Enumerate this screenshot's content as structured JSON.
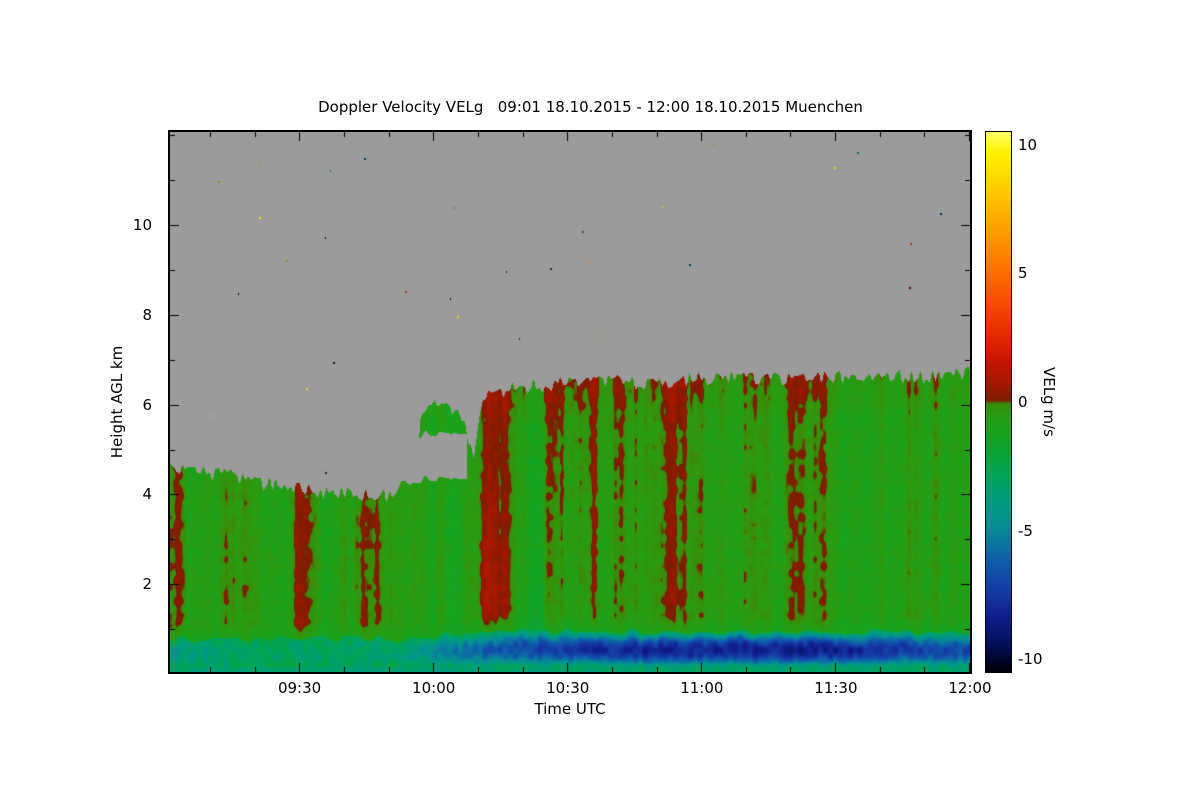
{
  "title": "Doppler Velocity VELg   09:01 18.10.2015 - 12:00 18.10.2015 Muenchen",
  "chart_data": {
    "type": "heatmap",
    "title": "Doppler Velocity VELg   09:01 18.10.2015 - 12:00 18.10.2015 Muenchen",
    "quantity": "Doppler Velocity VELg",
    "time_span": "09:01 18.10.2015 - 12:00 18.10.2015",
    "location": "Muenchen",
    "xlabel": "Time UTC",
    "ylabel": "Height AGL km",
    "colorbar_label": "VELg m/s",
    "x_start": "09:01",
    "x_end": "12:00",
    "x_total_minutes": 179,
    "x_ticks": [
      {
        "label": "09:30",
        "minute": 29
      },
      {
        "label": "10:00",
        "minute": 59
      },
      {
        "label": "10:30",
        "minute": 89
      },
      {
        "label": "11:00",
        "minute": 119
      },
      {
        "label": "11:30",
        "minute": 149
      },
      {
        "label": "12:00",
        "minute": 179
      }
    ],
    "x_minor_every_min": 10,
    "y_ticks": [
      2,
      4,
      6,
      8,
      10
    ],
    "y_minor_every_km": 1,
    "y_range_km": [
      0.07,
      12.07
    ],
    "colorbar_ticks": [
      10,
      5,
      0,
      -5,
      -10
    ],
    "colorbar_range": [
      -10.5,
      10.5
    ],
    "no_data_color": "#9b9b9b",
    "frame_color": "#000000",
    "colormap_stops": [
      [
        -10.5,
        "#000008"
      ],
      [
        -9.6,
        "#000d4d"
      ],
      [
        -8.4,
        "#101e8c"
      ],
      [
        -7.2,
        "#1440a8"
      ],
      [
        -6.0,
        "#0e64a8"
      ],
      [
        -5.0,
        "#068a96"
      ],
      [
        -4.0,
        "#009a84"
      ],
      [
        -3.0,
        "#00a45e"
      ],
      [
        -2.0,
        "#0aa436"
      ],
      [
        -1.2,
        "#18a41e"
      ],
      [
        -0.4,
        "#2c9a10"
      ],
      [
        -0.05,
        "#3c8a08"
      ],
      [
        0.05,
        "#7a1e00"
      ],
      [
        0.6,
        "#a01800"
      ],
      [
        1.5,
        "#c41400"
      ],
      [
        2.5,
        "#e12800"
      ],
      [
        4.0,
        "#f95000"
      ],
      [
        5.5,
        "#ff7c00"
      ],
      [
        7.0,
        "#ffa600"
      ],
      [
        8.5,
        "#ffd200"
      ],
      [
        9.7,
        "#fff200"
      ],
      [
        10.5,
        "#ffff66"
      ]
    ],
    "cloud_top_profile_min_km": [
      [
        0,
        4.6
      ],
      [
        5,
        4.5
      ],
      [
        12,
        4.45
      ],
      [
        18,
        4.3
      ],
      [
        25,
        4.2
      ],
      [
        32,
        4.1
      ],
      [
        40,
        4.0
      ],
      [
        47,
        3.95
      ],
      [
        50,
        4.05
      ],
      [
        53,
        4.4
      ],
      [
        55,
        4.3
      ],
      [
        56,
        5.7
      ],
      [
        58,
        5.95
      ],
      [
        61,
        6.05
      ],
      [
        64,
        5.85
      ],
      [
        66,
        5.6
      ],
      [
        67,
        5.0
      ],
      [
        68,
        4.85
      ],
      [
        70,
        6.1
      ],
      [
        73,
        6.3
      ],
      [
        78,
        6.4
      ],
      [
        85,
        6.45
      ],
      [
        92,
        6.5
      ],
      [
        100,
        6.55
      ],
      [
        108,
        6.45
      ],
      [
        115,
        6.55
      ],
      [
        122,
        6.6
      ],
      [
        130,
        6.6
      ],
      [
        138,
        6.55
      ],
      [
        145,
        6.65
      ],
      [
        152,
        6.6
      ],
      [
        160,
        6.65
      ],
      [
        168,
        6.6
      ],
      [
        174,
        6.7
      ],
      [
        179,
        6.7
      ]
    ],
    "gray_patches": [
      {
        "t": [
          54.5,
          66.5
        ],
        "h": [
          4.35,
          5.35
        ]
      }
    ],
    "surface_band": {
      "top_km_profile": [
        [
          0,
          0.78
        ],
        [
          55,
          0.8
        ],
        [
          70,
          0.97
        ],
        [
          179,
          0.95
        ]
      ],
      "intensity_profile_min_mps": [
        [
          0,
          -4.2
        ],
        [
          15,
          -3.2
        ],
        [
          40,
          -3.1
        ],
        [
          52,
          -3.6
        ],
        [
          58,
          -4.6
        ],
        [
          66,
          -5.6
        ],
        [
          74,
          -6.6
        ],
        [
          88,
          -7.4
        ],
        [
          105,
          -8.2
        ],
        [
          150,
          -8.3
        ],
        [
          160,
          -7.6
        ],
        [
          172,
          -7.0
        ],
        [
          179,
          -6.9
        ]
      ],
      "bottom_strip_mps": -3.4
    },
    "field_texture": {
      "base_mps": -1.35,
      "streak_amplitude_mps": 2.1,
      "red_zone_center_minute": 69,
      "bright_green_zone_center_minute": 84,
      "cloud_top_red_band_depth_km": 0.9
    },
    "mean_velocity_grid": {
      "time_bins": [
        "09:15",
        "09:45",
        "10:15",
        "10:45",
        "11:15",
        "11:45"
      ],
      "height_bins_km": [
        0.5,
        1.5,
        2.5,
        3.5,
        4.5,
        5.5,
        6.5
      ],
      "values_mps": [
        [
          -3.2,
          -3.3,
          -6.0,
          -7.6,
          -8.2,
          -7.6
        ],
        [
          -0.8,
          -0.7,
          -0.3,
          -0.8,
          -0.9,
          -0.8
        ],
        [
          -0.6,
          -0.5,
          0.2,
          -0.7,
          -0.8,
          -0.7
        ],
        [
          -0.5,
          -0.6,
          0.3,
          -0.6,
          -0.6,
          -0.5
        ],
        [
          null,
          null,
          -0.3,
          -0.5,
          -0.4,
          -0.5
        ],
        [
          null,
          null,
          -0.4,
          -0.5,
          -0.3,
          -0.4
        ],
        [
          null,
          null,
          null,
          -0.2,
          -0.3,
          -0.2
        ]
      ]
    },
    "speckle_colors": [
      "#101010",
      "#c23000",
      "#e8d800",
      "#1a3fb0",
      "#0c7a40",
      "#f09000",
      "#8a9a00",
      "#202020",
      "#5a0000",
      "#003846"
    ],
    "speckle_count": 55
  }
}
